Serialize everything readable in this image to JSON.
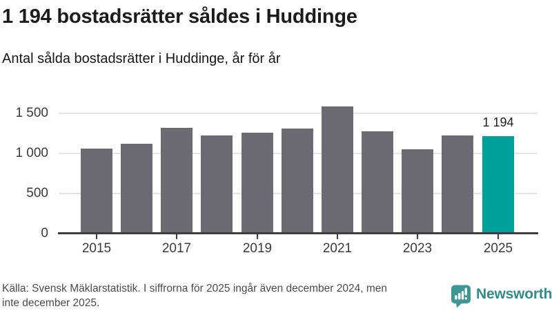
{
  "page": {
    "title": "1 194 bostadsrätter såldes i Huddinge",
    "subtitle": "Antal sålda bostadsrätter i Huddinge, år för år"
  },
  "chart_data": {
    "type": "bar",
    "title": "1 194 bostadsrätter såldes i Huddinge",
    "subtitle": "Antal sålda bostadsrätter i Huddinge, år för år",
    "categories": [
      "2015",
      "2016",
      "2017",
      "2018",
      "2019",
      "2020",
      "2021",
      "2022",
      "2023",
      "2024",
      "2025"
    ],
    "values": [
      1045,
      1100,
      1305,
      1210,
      1245,
      1295,
      1565,
      1255,
      1035,
      1205,
      1194
    ],
    "highlight_index": 10,
    "annotation": {
      "label": "1 194",
      "target": "2025"
    },
    "xtick_labels": [
      "2015",
      "2017",
      "2019",
      "2021",
      "2023",
      "2025"
    ],
    "yticks": [
      {
        "label": "1 500",
        "value": 1500
      },
      {
        "label": "1 000",
        "value": 1000
      },
      {
        "label": "500",
        "value": 500
      },
      {
        "label": "0",
        "value": 0
      }
    ],
    "ylim": [
      0,
      1600
    ],
    "grid": "horizontal",
    "legend": "none",
    "bar_color": "#6c6b71",
    "highlight_color": "#00a19b"
  },
  "footer": {
    "source_lines": [
      "Källa: Svensk Mäklarstatistik. I siffrorna för 2025 ingår även december 2024, men",
      "inte december 2025."
    ],
    "brand": "Newsworthy",
    "brand_color": "#2f8d8b"
  }
}
